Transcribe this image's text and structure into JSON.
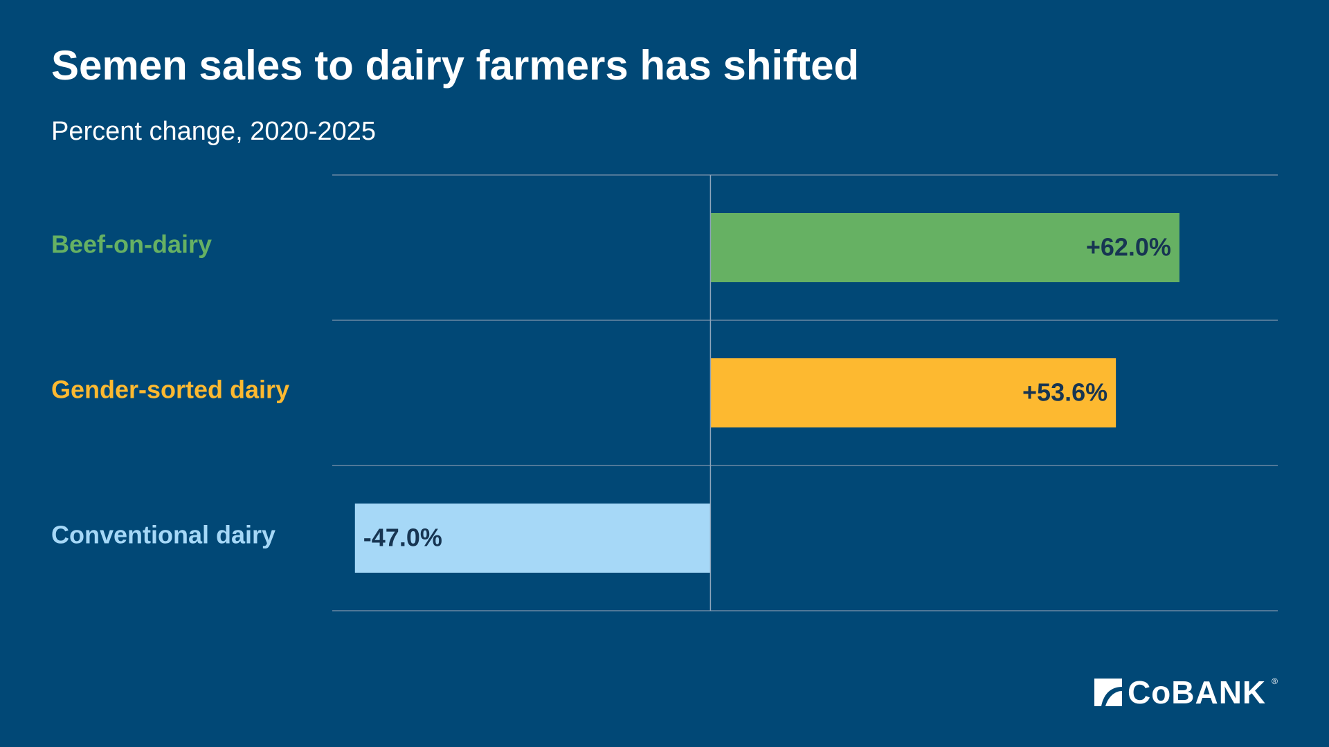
{
  "chart_data": {
    "type": "bar",
    "orientation": "horizontal",
    "title": "Semen sales to dairy farmers has shifted",
    "subtitle": "Percent change, 2020-2025",
    "categories": [
      "Beef-on-dairy",
      "Gender-sorted dairy",
      "Conventional dairy"
    ],
    "values": [
      62.0,
      53.6,
      -47.0
    ],
    "value_labels": [
      "+62.0%",
      "+53.6%",
      "-47.0%"
    ],
    "colors": [
      "#66B163",
      "#FDB930",
      "#A6D8F7"
    ],
    "xlim": [
      -50,
      75
    ],
    "grid": true,
    "legend": "none"
  },
  "colors": {
    "background": "#014876",
    "gridline": "#6B88A3",
    "value_text": "#173552"
  },
  "logo": {
    "text": "CoBANK",
    "mark": "registered",
    "icon": "cobank-logo-icon"
  }
}
